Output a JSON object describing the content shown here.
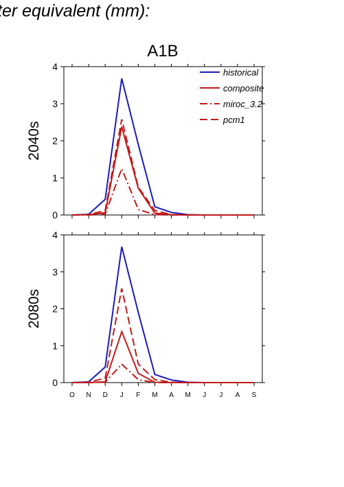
{
  "page_title": "ter equivalent (mm):",
  "figure_title": "A1B",
  "colors": {
    "historical": "#1a1ab8",
    "scenario": "#c01a1a",
    "axis": "#000000"
  },
  "chart_data": [
    {
      "type": "line",
      "row_label": "2040s",
      "categories": [
        "O",
        "N",
        "D",
        "J",
        "F",
        "M",
        "A",
        "M",
        "J",
        "J",
        "A",
        "S"
      ],
      "ylim": [
        0,
        4
      ],
      "yticks": [
        0,
        1,
        2,
        3,
        4
      ],
      "legend": "top-right",
      "grid": false,
      "series": [
        {
          "name": "historical",
          "color": "#1a1ab8",
          "dash": "solid",
          "values": [
            0,
            0.02,
            0.42,
            3.68,
            1.9,
            0.22,
            0.07,
            0.01,
            0,
            0,
            0,
            0
          ]
        },
        {
          "name": "composite",
          "color": "#c01a1a",
          "dash": "solid",
          "values": [
            0,
            0.01,
            0.06,
            2.38,
            0.72,
            0.05,
            0.01,
            0,
            0,
            0,
            0,
            0
          ]
        },
        {
          "name": "miroc_3.2",
          "color": "#c01a1a",
          "dash": "dashdot",
          "values": [
            0,
            0,
            0.02,
            1.25,
            0.15,
            0.01,
            0,
            0,
            0,
            0,
            0,
            0
          ]
        },
        {
          "name": "pcm1",
          "color": "#c01a1a",
          "dash": "dashed",
          "values": [
            0,
            0.01,
            0.12,
            2.58,
            0.75,
            0.12,
            0.01,
            0,
            0,
            0,
            0,
            0
          ]
        }
      ]
    },
    {
      "type": "line",
      "row_label": "2080s",
      "categories": [
        "O",
        "N",
        "D",
        "J",
        "F",
        "M",
        "A",
        "M",
        "J",
        "J",
        "A",
        "S"
      ],
      "ylim": [
        0,
        4
      ],
      "yticks": [
        0,
        1,
        2,
        3,
        4
      ],
      "legend": "none",
      "grid": false,
      "series": [
        {
          "name": "historical",
          "color": "#1a1ab8",
          "dash": "solid",
          "values": [
            0,
            0.02,
            0.42,
            3.68,
            1.9,
            0.22,
            0.07,
            0.01,
            0,
            0,
            0,
            0
          ]
        },
        {
          "name": "composite",
          "color": "#c01a1a",
          "dash": "solid",
          "values": [
            0,
            0,
            0.02,
            1.38,
            0.25,
            0.01,
            0,
            0,
            0,
            0,
            0,
            0
          ]
        },
        {
          "name": "miroc_3.2",
          "color": "#c01a1a",
          "dash": "dashdot",
          "values": [
            0,
            0,
            0.01,
            0.5,
            0.08,
            0,
            0,
            0,
            0,
            0,
            0,
            0
          ]
        },
        {
          "name": "pcm1",
          "color": "#c01a1a",
          "dash": "dashed",
          "values": [
            0,
            0.01,
            0.12,
            2.55,
            0.5,
            0.08,
            0.01,
            0,
            0,
            0,
            0,
            0
          ]
        }
      ]
    }
  ]
}
